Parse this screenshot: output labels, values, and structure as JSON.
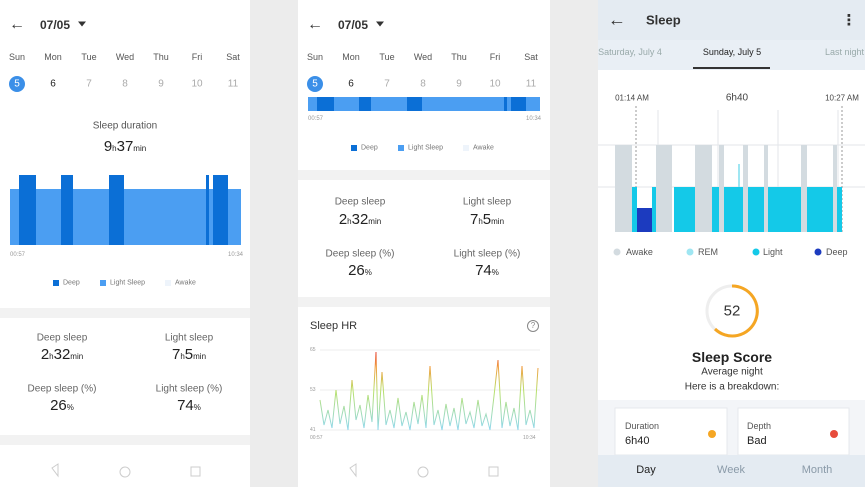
{
  "screens": [
    {
      "date": "07/05",
      "weekdays": [
        "Sun",
        "Mon",
        "Tue",
        "Wed",
        "Thu",
        "Fri",
        "Sat"
      ],
      "days": [
        "5",
        "6",
        "7",
        "8",
        "9",
        "10",
        "11"
      ],
      "duration_title": "Sleep duration",
      "duration": [
        "9",
        "h",
        "37",
        "min"
      ],
      "start": "00:57",
      "end": "10:34",
      "legend": [
        "Deep",
        "Light Sleep",
        "Awake"
      ],
      "stats": [
        {
          "label": "Deep sleep",
          "value": [
            "2",
            "h",
            "32",
            "min"
          ]
        },
        {
          "label": "Light sleep",
          "value": [
            "7",
            "h",
            "5",
            "min"
          ]
        },
        {
          "label": "Deep sleep (%)",
          "value": [
            "26",
            "%"
          ]
        },
        {
          "label": "Light sleep (%)",
          "value": [
            "74",
            "%"
          ]
        }
      ]
    },
    {
      "date": "07/05",
      "weekdays": [
        "Sun",
        "Mon",
        "Tue",
        "Wed",
        "Thu",
        "Fri",
        "Sat"
      ],
      "days": [
        "5",
        "6",
        "7",
        "8",
        "9",
        "10",
        "11"
      ],
      "start": "00:57",
      "end": "10:34",
      "legend": [
        "Deep",
        "Light Sleep",
        "Awake"
      ],
      "stats": [
        {
          "label": "Deep sleep",
          "value": [
            "2",
            "h",
            "32",
            "min"
          ]
        },
        {
          "label": "Light sleep",
          "value": [
            "7",
            "h",
            "5",
            "min"
          ]
        },
        {
          "label": "Deep sleep (%)",
          "value": [
            "26",
            "%"
          ]
        },
        {
          "label": "Light sleep (%)",
          "value": [
            "74",
            "%"
          ]
        }
      ],
      "hr": {
        "title": "Sleep HR",
        "help": "?",
        "yticks": [
          "65",
          "53",
          "41"
        ],
        "start": "00:57",
        "end": "10:34"
      }
    }
  ],
  "sleep_app": {
    "title": "Sleep",
    "menu": "⋮",
    "tabs": [
      "Saturday, July 4",
      "Sunday, July 5",
      "Last night"
    ],
    "start": "01:14 AM",
    "total": "6h40",
    "end": "10:27 AM",
    "legend": [
      "Awake",
      "REM",
      "Light",
      "Deep"
    ],
    "score": "52",
    "score_title": "Sleep Score",
    "score_note": "Average night",
    "breakdown": "Here is a breakdown:",
    "cards": [
      {
        "label": "Duration",
        "value": "6h40"
      },
      {
        "label": "Depth",
        "value": "Bad"
      }
    ],
    "nav": [
      "Day",
      "Week",
      "Month"
    ]
  }
}
